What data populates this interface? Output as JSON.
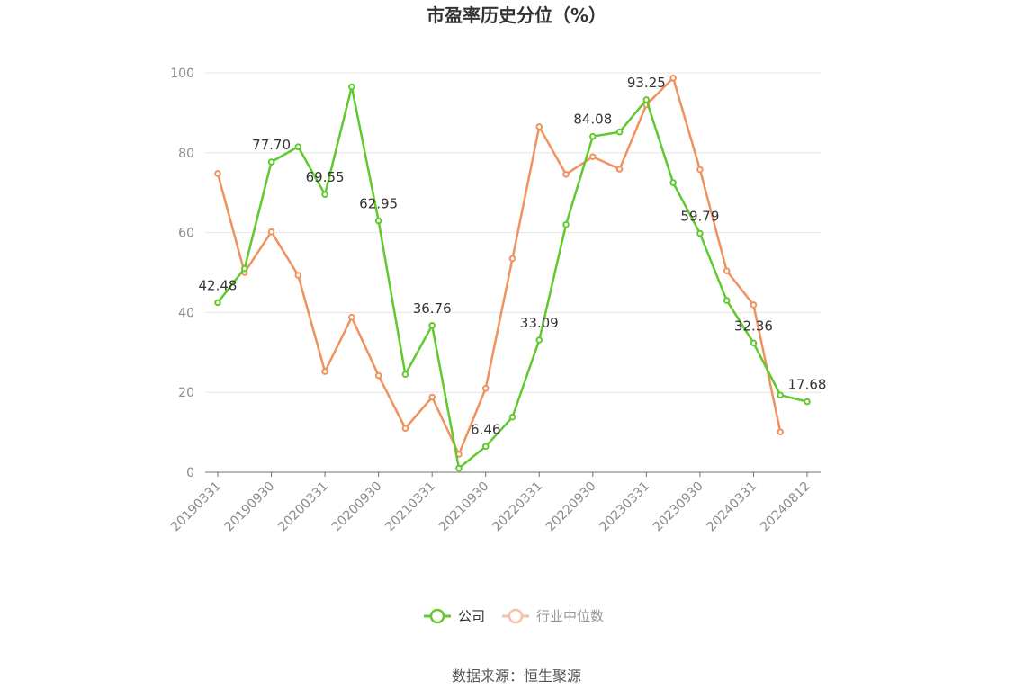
{
  "chart_data": {
    "type": "line",
    "title": "市盈率历史分位（%）",
    "source": "数据来源：恒生聚源",
    "ylim": [
      0,
      100
    ],
    "yticks": [
      0,
      20,
      40,
      60,
      80,
      100
    ],
    "xtick_labels": [
      "20190331",
      "20190930",
      "20200331",
      "20200930",
      "20210331",
      "20210930",
      "20220331",
      "20220930",
      "20230331",
      "20230930",
      "20240331",
      "20240812"
    ],
    "grid": true,
    "legend_position": "bottom-center",
    "series": [
      {
        "name": "公司",
        "color": "#5fc92e",
        "values": [
          42.48,
          51.0,
          77.7,
          81.5,
          69.55,
          96.5,
          62.95,
          24.5,
          36.76,
          1.0,
          6.46,
          13.8,
          33.09,
          62.0,
          84.08,
          85.2,
          93.25,
          72.5,
          59.79,
          43.0,
          32.36,
          19.3,
          17.68
        ],
        "labels": {
          "0": "42.48",
          "2": "77.70",
          "4": "69.55",
          "6": "62.95",
          "8": "36.76",
          "10": "6.46",
          "12": "33.09",
          "14": "84.08",
          "16": "93.25",
          "18": "59.79",
          "20": "32.36",
          "22": "17.68"
        }
      },
      {
        "name": "行业中位数",
        "color": "#f0915e",
        "values": [
          74.8,
          50.0,
          60.2,
          49.3,
          25.2,
          38.8,
          24.2,
          11.0,
          18.8,
          4.5,
          21.0,
          53.5,
          86.5,
          74.6,
          79.0,
          75.9,
          92.0,
          98.7,
          75.8,
          50.4,
          41.9,
          10.1,
          null
        ]
      }
    ]
  },
  "legend": {
    "inactive_color": "#f7c1a5",
    "label_color_active": "#333333",
    "label_color_inactive": "#999999"
  }
}
